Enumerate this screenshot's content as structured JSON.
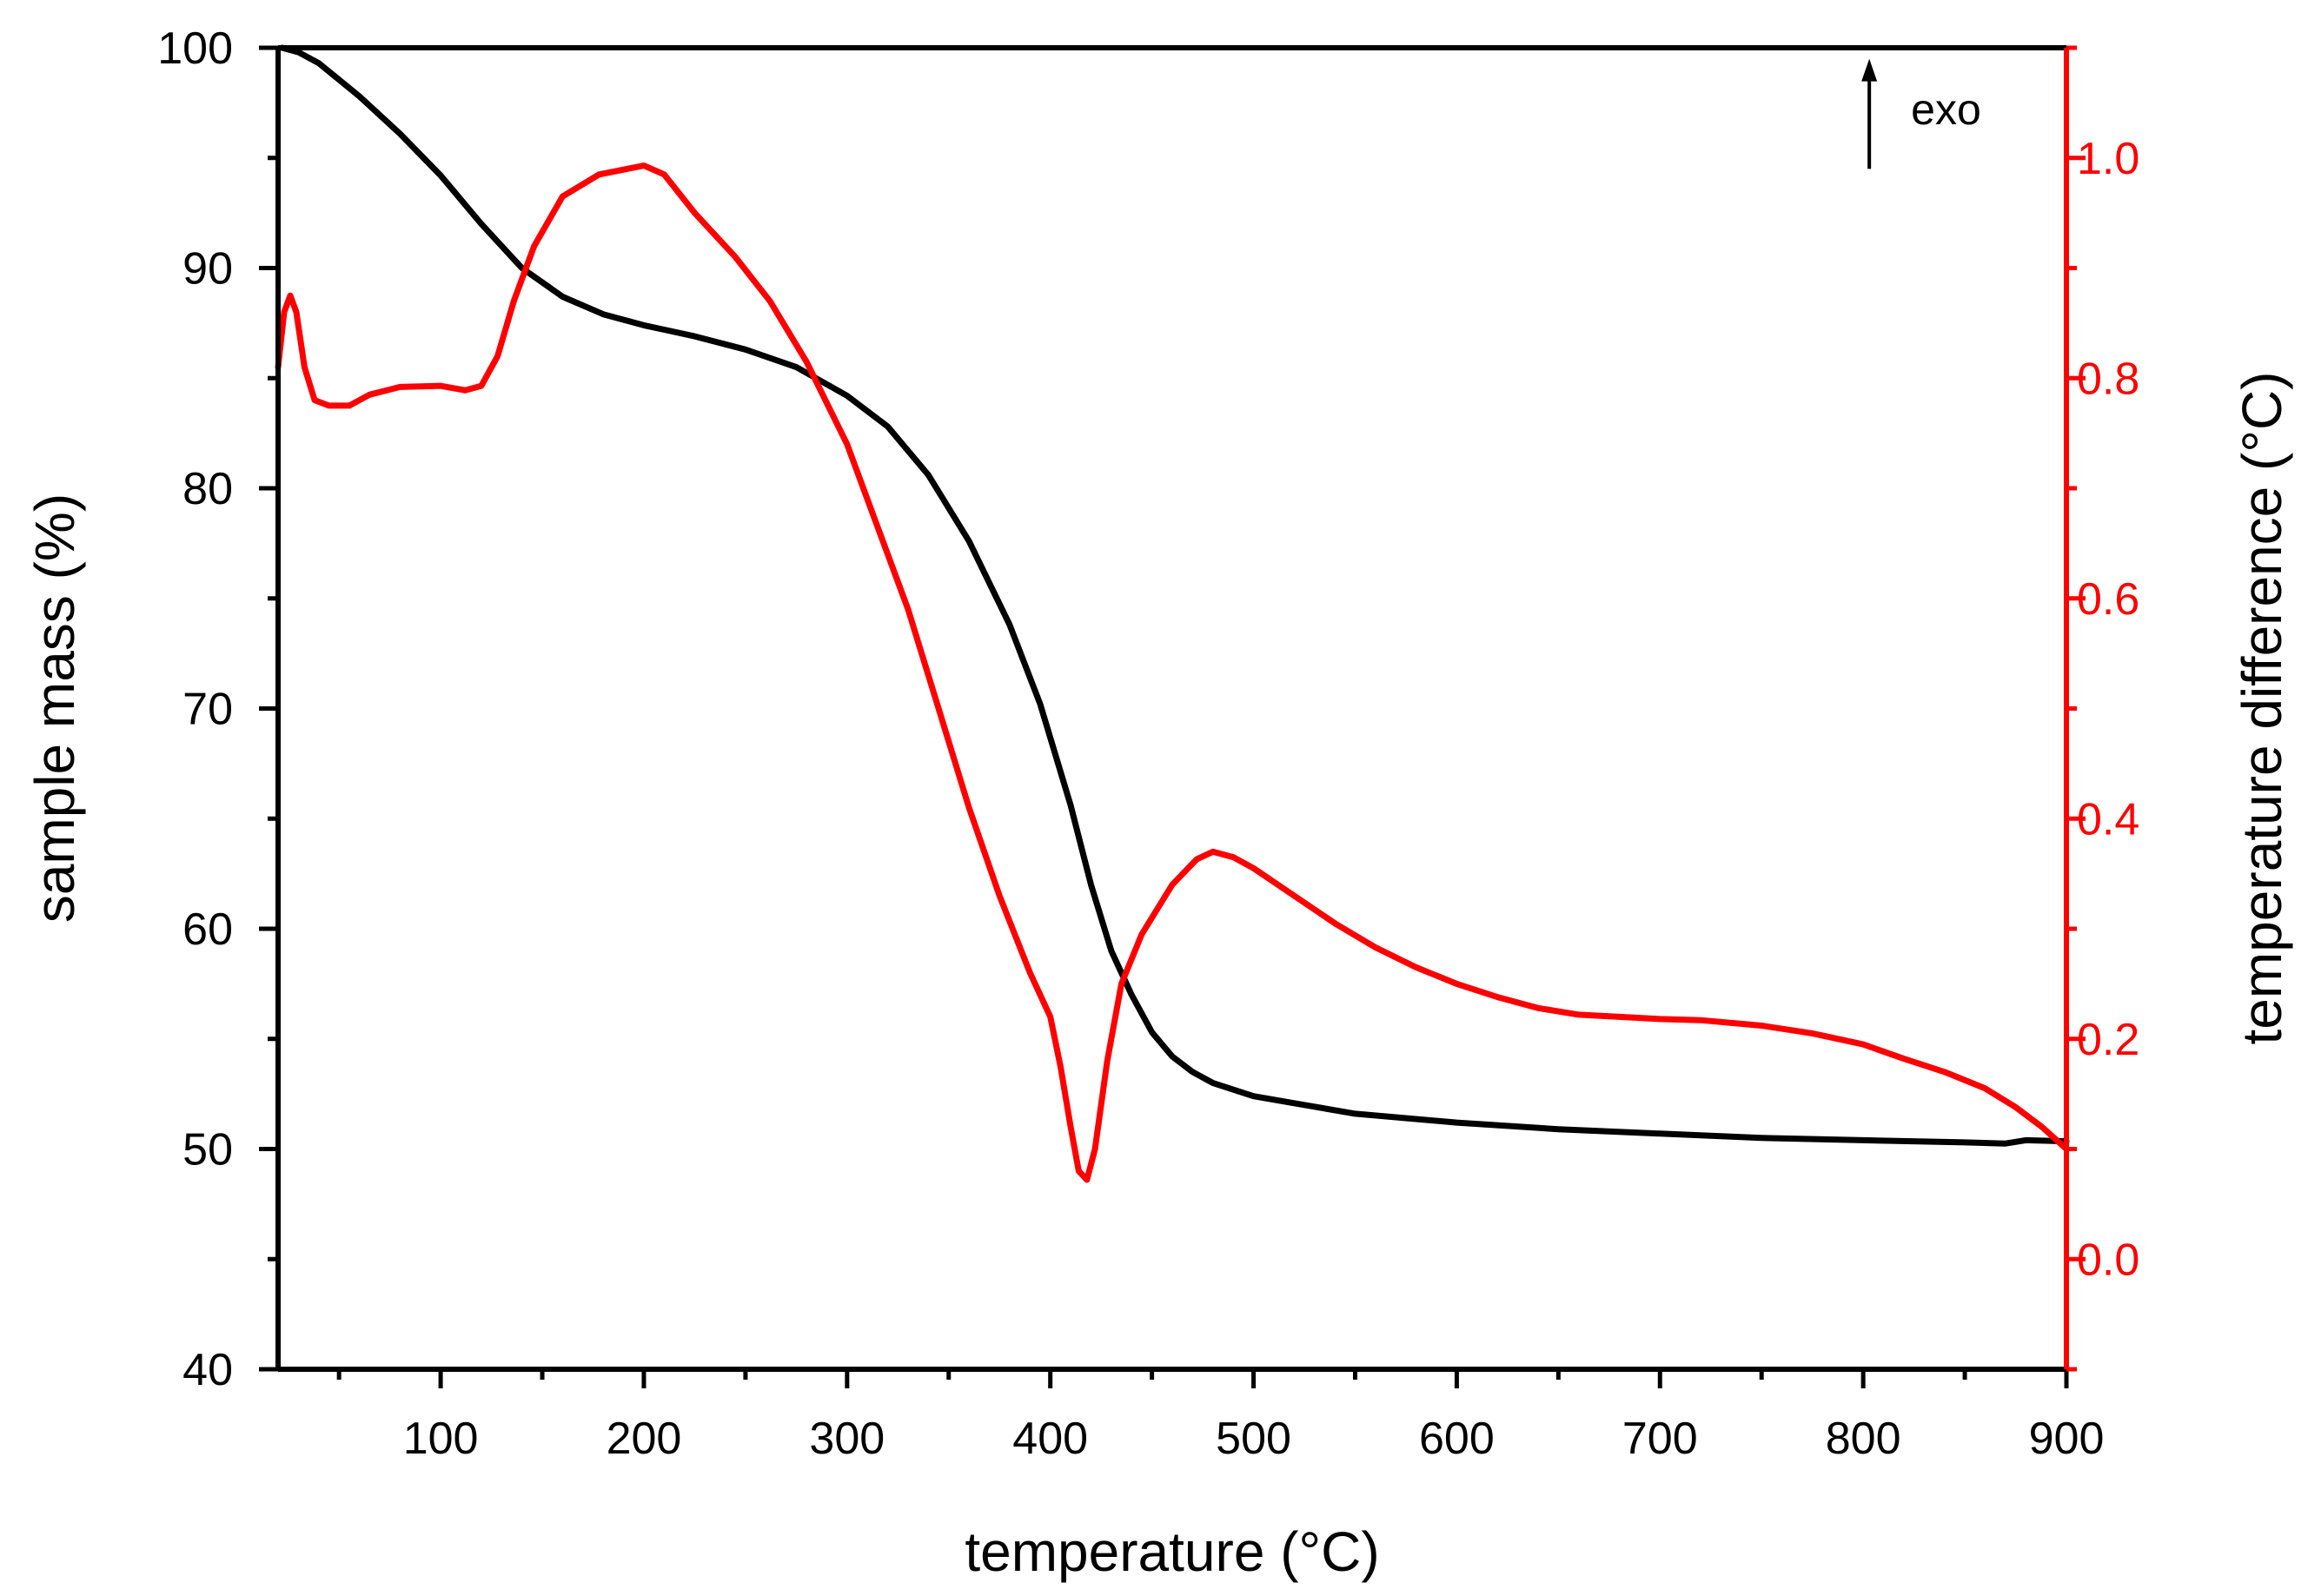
{
  "chart_data": {
    "type": "line",
    "title": "",
    "xlabel": "temperature (°C)",
    "ylabel_left": "sample mass (%)",
    "ylabel_right": "temperature difference (°C)",
    "xlim": [
      20,
      900
    ],
    "ylim_left": [
      40,
      100
    ],
    "ylim_right": [
      -0.1,
      1.1
    ],
    "x_ticks": [
      100,
      200,
      300,
      400,
      500,
      600,
      700,
      800,
      900
    ],
    "x_tick_labels": [
      "100",
      "200",
      "300",
      "400",
      "500",
      "600",
      "700",
      "800",
      "900"
    ],
    "y_left_ticks": [
      40,
      50,
      60,
      70,
      80,
      90,
      100
    ],
    "y_left_tick_labels": [
      "40",
      "50",
      "60",
      "70",
      "80",
      "90",
      "100"
    ],
    "y_right_ticks": [
      0.0,
      0.2,
      0.4,
      0.6,
      0.8,
      1.0
    ],
    "y_right_tick_labels": [
      "0.0",
      "0.2",
      "0.4",
      "0.6",
      "0.8",
      "1.0"
    ],
    "annotation": {
      "text": "exo",
      "arrow_x": 803,
      "arrow_from_y": 0.99,
      "arrow_to_y": 1.09
    },
    "colors": {
      "mass": "#000000",
      "dta": "#ff0000",
      "axis": "#000000",
      "right_axis": "#ff0000"
    },
    "series": [
      {
        "name": "sample mass",
        "axis": "left",
        "color": "#000000",
        "points": [
          [
            22,
            100.0
          ],
          [
            30,
            99.8
          ],
          [
            40,
            99.3
          ],
          [
            60,
            97.8
          ],
          [
            80,
            96.1
          ],
          [
            100,
            94.2
          ],
          [
            120,
            92.0
          ],
          [
            140,
            90.0
          ],
          [
            160,
            88.7
          ],
          [
            180,
            87.9
          ],
          [
            200,
            87.4
          ],
          [
            225,
            86.9
          ],
          [
            250,
            86.3
          ],
          [
            275,
            85.5
          ],
          [
            300,
            84.2
          ],
          [
            320,
            82.8
          ],
          [
            340,
            80.6
          ],
          [
            360,
            77.6
          ],
          [
            380,
            73.8
          ],
          [
            395,
            70.2
          ],
          [
            410,
            65.6
          ],
          [
            420,
            62.0
          ],
          [
            430,
            59.0
          ],
          [
            440,
            57.0
          ],
          [
            450,
            55.3
          ],
          [
            460,
            54.2
          ],
          [
            470,
            53.5
          ],
          [
            480,
            53.0
          ],
          [
            500,
            52.4
          ],
          [
            525,
            52.0
          ],
          [
            550,
            51.6
          ],
          [
            600,
            51.2
          ],
          [
            650,
            50.9
          ],
          [
            700,
            50.7
          ],
          [
            750,
            50.5
          ],
          [
            800,
            50.4
          ],
          [
            850,
            50.3
          ],
          [
            870,
            50.25
          ],
          [
            880,
            50.4
          ],
          [
            900,
            50.35
          ]
        ]
      },
      {
        "name": "temperature difference",
        "axis": "right",
        "color": "#ff0000",
        "points": [
          [
            20,
            0.81
          ],
          [
            23,
            0.86
          ],
          [
            26,
            0.875
          ],
          [
            29,
            0.86
          ],
          [
            33,
            0.81
          ],
          [
            38,
            0.78
          ],
          [
            45,
            0.775
          ],
          [
            55,
            0.775
          ],
          [
            65,
            0.785
          ],
          [
            80,
            0.792
          ],
          [
            100,
            0.793
          ],
          [
            112,
            0.789
          ],
          [
            120,
            0.793
          ],
          [
            128,
            0.82
          ],
          [
            136,
            0.87
          ],
          [
            146,
            0.92
          ],
          [
            160,
            0.965
          ],
          [
            178,
            0.985
          ],
          [
            200,
            0.993
          ],
          [
            210,
            0.985
          ],
          [
            225,
            0.95
          ],
          [
            245,
            0.91
          ],
          [
            262,
            0.87
          ],
          [
            280,
            0.815
          ],
          [
            300,
            0.74
          ],
          [
            315,
            0.665
          ],
          [
            330,
            0.59
          ],
          [
            345,
            0.5
          ],
          [
            360,
            0.41
          ],
          [
            375,
            0.33
          ],
          [
            390,
            0.26
          ],
          [
            400,
            0.22
          ],
          [
            405,
            0.175
          ],
          [
            410,
            0.12
          ],
          [
            414,
            0.08
          ],
          [
            418,
            0.072
          ],
          [
            422,
            0.1
          ],
          [
            428,
            0.18
          ],
          [
            435,
            0.25
          ],
          [
            445,
            0.295
          ],
          [
            460,
            0.34
          ],
          [
            472,
            0.363
          ],
          [
            480,
            0.37
          ],
          [
            490,
            0.365
          ],
          [
            500,
            0.355
          ],
          [
            520,
            0.33
          ],
          [
            540,
            0.305
          ],
          [
            560,
            0.283
          ],
          [
            580,
            0.265
          ],
          [
            600,
            0.25
          ],
          [
            620,
            0.238
          ],
          [
            640,
            0.228
          ],
          [
            660,
            0.222
          ],
          [
            680,
            0.22
          ],
          [
            700,
            0.218
          ],
          [
            720,
            0.217
          ],
          [
            750,
            0.212
          ],
          [
            775,
            0.205
          ],
          [
            800,
            0.195
          ],
          [
            820,
            0.182
          ],
          [
            840,
            0.17
          ],
          [
            860,
            0.155
          ],
          [
            875,
            0.138
          ],
          [
            888,
            0.12
          ],
          [
            900,
            0.1
          ]
        ]
      }
    ]
  }
}
